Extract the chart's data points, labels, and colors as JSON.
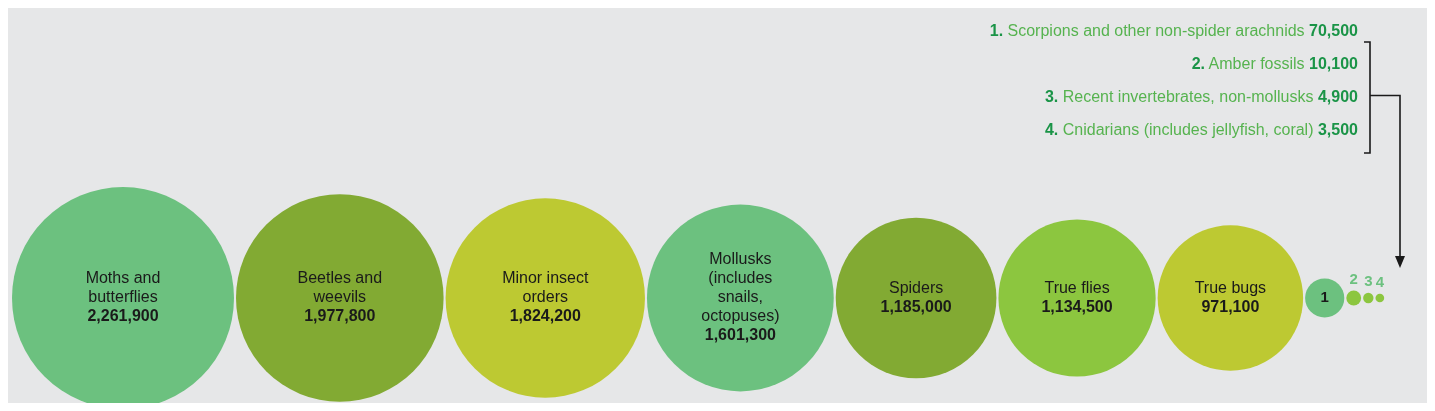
{
  "chart_data": {
    "type": "other",
    "categories": [
      "Moths and butterflies",
      "Beetles and weevils",
      "Minor insect orders",
      "Mollusks (includes snails, octopuses)",
      "Spiders",
      "True flies",
      "True bugs",
      "Scorpions and other non-spider arachnids",
      "Amber fossils",
      "Recent invertebrates, non-mollusks",
      "Cnidarians (includes jellyfish, coral)"
    ],
    "values": [
      2261900,
      1977800,
      1824200,
      1601300,
      1185000,
      1134500,
      971100,
      70500,
      10100,
      4900,
      3500
    ],
    "colors": [
      "#6cc17f",
      "#82aa33",
      "#bdc932",
      "#6cc17f",
      "#82aa33",
      "#8cc63f",
      "#bdc932",
      "#6cc17f",
      "#8cc63f",
      "#8cc63f",
      "#8cc63f"
    ],
    "annotations": [
      {
        "text": "1",
        "x": "Scorpions and other non-spider arachnids"
      },
      {
        "text": "2",
        "x": "Amber fossils"
      },
      {
        "text": "3",
        "x": "Recent invertebrates, non-mollusks"
      },
      {
        "text": "4",
        "x": "Cnidarians (includes jellyfish, coral)"
      },
      "1.",
      "2.",
      "3.",
      "4."
    ],
    "value_labels": [
      "2,261,900",
      "1,977,800",
      "1,824,200",
      "1,601,300",
      "1,185,000",
      "1,134,500",
      "971,100",
      "70,500",
      "10,100",
      "4,900",
      "3,500"
    ]
  }
}
